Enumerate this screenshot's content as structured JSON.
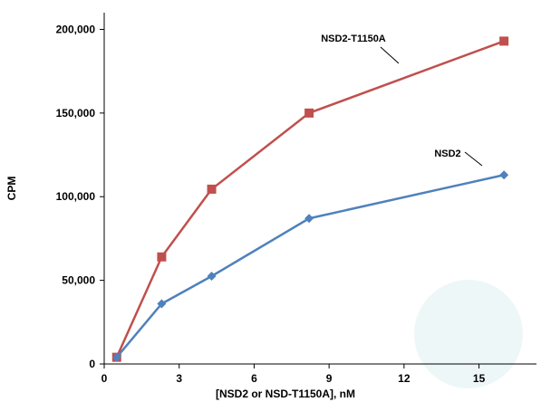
{
  "chart_data": {
    "type": "line",
    "title": "",
    "xlabel": "[NSD2 or NSD-T1150A], nM",
    "ylabel": "CPM",
    "xlim": [
      0,
      17.3
    ],
    "ylim": [
      0,
      210000
    ],
    "x_ticks": [
      0,
      3,
      6,
      9,
      12,
      15
    ],
    "y_ticks": [
      0,
      50000,
      100000,
      150000,
      200000
    ],
    "x_tick_labels": [
      "0",
      "3",
      "6",
      "9",
      "12",
      "15"
    ],
    "y_tick_labels": [
      "0",
      "50,000",
      "100,000",
      "150,000",
      "200,000"
    ],
    "grid": false,
    "legend": "none (inline callout labels)",
    "series": [
      {
        "name": "NSD2-T1150A",
        "color": "#c0504d",
        "marker": "square",
        "x": [
          0.5,
          2.3,
          4.3,
          8.2,
          16.0
        ],
        "y": [
          4000,
          64000,
          104500,
          150000,
          193000
        ]
      },
      {
        "name": "NSD2",
        "color": "#4f81bd",
        "marker": "diamond",
        "x": [
          0.5,
          2.3,
          4.3,
          8.2,
          16.0
        ],
        "y": [
          4000,
          36000,
          52500,
          87000,
          113000
        ]
      }
    ]
  },
  "background_decoration": {
    "shape": "circle",
    "color": "#eef7f8"
  }
}
